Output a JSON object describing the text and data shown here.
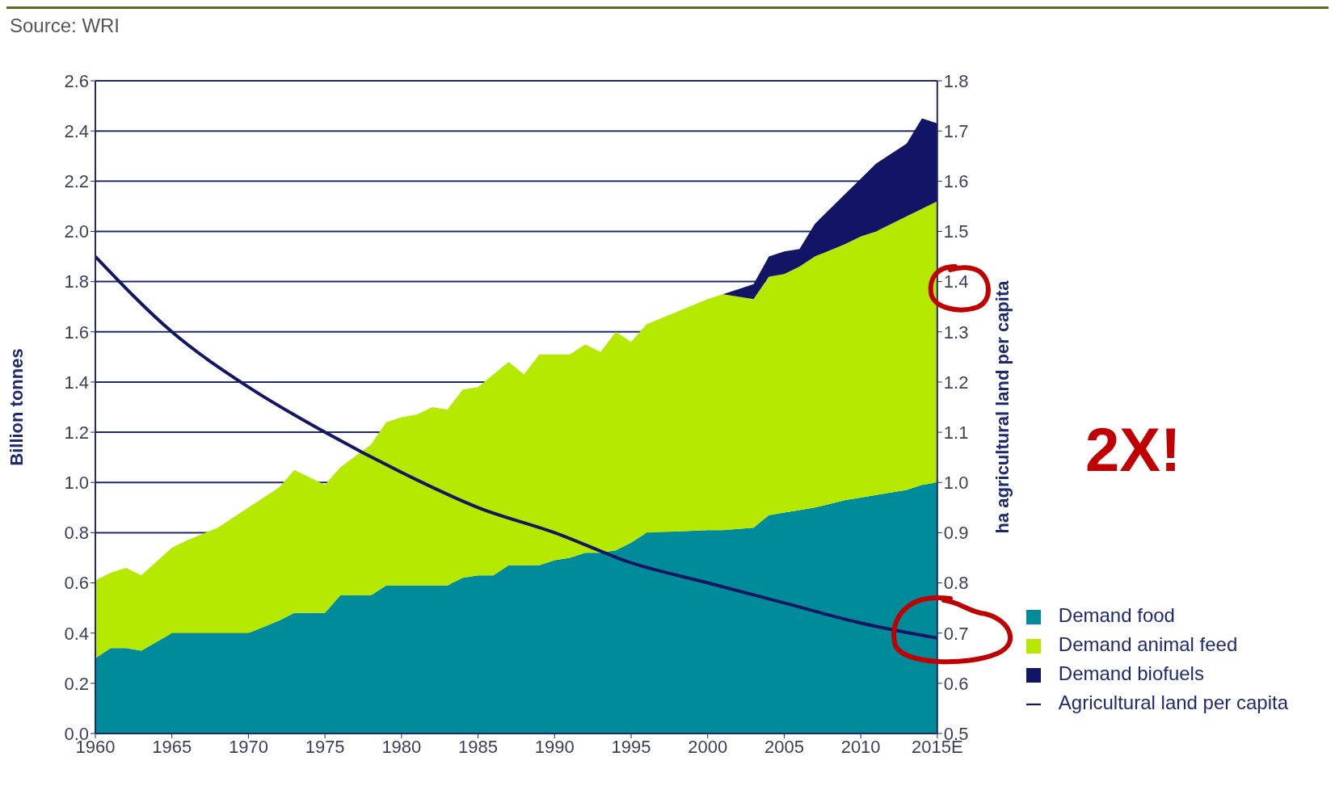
{
  "chart_data": {
    "type": "area",
    "stacked": true,
    "annotations": [
      "Source: WRI",
      "2X!"
    ],
    "ylabel": "Billion tonnes",
    "y2label": "ha agricultural land per capita",
    "x": [
      1960,
      1961,
      1962,
      1963,
      1965,
      1966,
      1968,
      1970,
      1972,
      1973,
      1975,
      1976,
      1978,
      1979,
      1980,
      1981,
      1982,
      1983,
      1984,
      1985,
      1986,
      1987,
      1988,
      1989,
      1990,
      1991,
      1992,
      1993,
      1994,
      1995,
      1996,
      2000,
      2001,
      2003,
      2004,
      2005,
      2006,
      2007,
      2009,
      2010,
      2011,
      2013,
      2014,
      2015
    ],
    "series": [
      {
        "name": "Demand food",
        "color": "#008b9a",
        "values": [
          0.3,
          0.34,
          0.34,
          0.33,
          0.4,
          0.4,
          0.4,
          0.4,
          0.45,
          0.48,
          0.48,
          0.55,
          0.55,
          0.59,
          0.59,
          0.59,
          0.59,
          0.59,
          0.62,
          0.63,
          0.63,
          0.67,
          0.67,
          0.67,
          0.69,
          0.7,
          0.72,
          0.72,
          0.73,
          0.76,
          0.8,
          0.81,
          0.81,
          0.82,
          0.87,
          0.88,
          0.89,
          0.9,
          0.93,
          0.94,
          0.95,
          0.97,
          0.99,
          1.0
        ]
      },
      {
        "name": "Demand animal feed",
        "color": "#b5ea00",
        "values": [
          0.31,
          0.3,
          0.32,
          0.3,
          0.34,
          0.37,
          0.42,
          0.5,
          0.53,
          0.57,
          0.51,
          0.51,
          0.6,
          0.65,
          0.67,
          0.68,
          0.71,
          0.7,
          0.75,
          0.75,
          0.8,
          0.81,
          0.76,
          0.84,
          0.82,
          0.81,
          0.83,
          0.8,
          0.87,
          0.8,
          0.83,
          0.92,
          0.94,
          0.91,
          0.95,
          0.95,
          0.97,
          1.0,
          1.02,
          1.04,
          1.05,
          1.09,
          1.1,
          1.12
        ]
      },
      {
        "name": "Demand biofuels",
        "color": "#121466",
        "values": [
          null,
          null,
          null,
          null,
          null,
          null,
          null,
          null,
          null,
          null,
          null,
          null,
          null,
          null,
          null,
          null,
          null,
          null,
          null,
          null,
          null,
          null,
          null,
          null,
          null,
          null,
          null,
          null,
          null,
          null,
          null,
          null,
          0,
          0.06,
          0.08,
          0.09,
          0.07,
          0.13,
          0.2,
          0.23,
          0.27,
          0.29,
          0.36,
          0.31
        ]
      },
      {
        "name": "Agricultural land per capita",
        "type": "line",
        "axis": "y2",
        "color": "#131660",
        "x": [
          1960,
          1965,
          1970,
          1975,
          1980,
          1985,
          1990,
          1995,
          2000,
          2005,
          2010,
          2015
        ],
        "values": [
          1.45,
          1.3,
          1.19,
          1.1,
          1.02,
          0.95,
          0.9,
          0.84,
          0.8,
          0.76,
          0.72,
          0.69
        ]
      }
    ],
    "xlim": [
      1960,
      2015
    ],
    "xticks": [
      1960,
      1965,
      1970,
      1975,
      1980,
      1985,
      1990,
      1995,
      2000,
      2005,
      2010,
      {
        "value": 2015,
        "label": "2015E"
      }
    ],
    "ylim": [
      0,
      2.6
    ],
    "yticks": [
      {
        "value": 0,
        "label": "0.0"
      },
      0.2,
      0.4,
      0.6,
      0.8,
      {
        "value": 1,
        "label": "1.0"
      },
      1.2,
      1.4,
      1.6,
      1.8,
      {
        "value": 2,
        "label": "2.0"
      },
      2.2,
      2.4,
      2.6
    ],
    "y2lim": [
      0.5,
      1.8
    ],
    "y2ticks": [
      0.5,
      0.6,
      0.7,
      0.8,
      0.9,
      {
        "value": 1,
        "label": "1.0"
      },
      1.1,
      1.2,
      1.3,
      1.4,
      1.5,
      1.6,
      1.7,
      1.8
    ],
    "grid": "y",
    "legend": "bottom right",
    "marker": "none",
    "line_style": "solid"
  }
}
